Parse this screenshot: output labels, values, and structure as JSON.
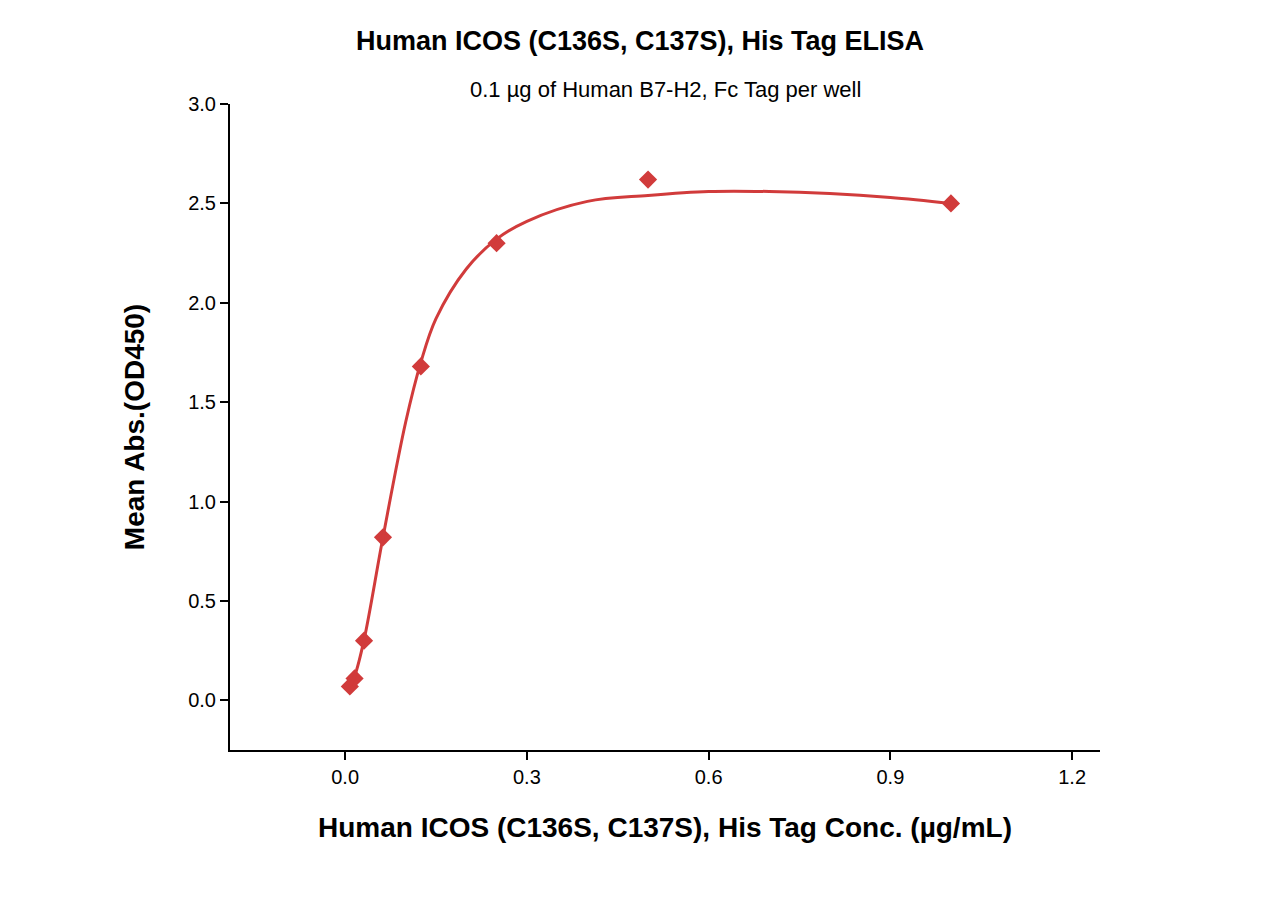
{
  "chart_data": {
    "type": "scatter",
    "title": "Human ICOS (C136S, C137S), His Tag ELISA",
    "subtitle": "0.1 µg of Human B7-H2, Fc Tag per well",
    "x_label": "Human ICOS (C136S, C137S), His Tag Conc. (µg/mL)",
    "y_label": "Mean Abs.(OD450)",
    "series": [
      {
        "type": "scatter",
        "marker": "diamond",
        "color": "#d13b3b",
        "x": [
          0.0078,
          0.0156,
          0.03125,
          0.0625,
          0.125,
          0.25,
          0.5,
          1.0
        ],
        "values": [
          0.07,
          0.11,
          0.3,
          0.82,
          1.68,
          2.3,
          2.62,
          2.5
        ]
      },
      {
        "type": "line",
        "line_style": "solid",
        "color": "#d13b3b",
        "x": [
          0.0078,
          0.0156,
          0.031,
          0.0625,
          0.1,
          0.125,
          0.15,
          0.2,
          0.25,
          0.3,
          0.4,
          0.5,
          0.6,
          0.7,
          0.8,
          0.9,
          1.0
        ],
        "values": [
          0.07,
          0.12,
          0.3,
          0.82,
          1.4,
          1.7,
          1.92,
          2.17,
          2.32,
          2.41,
          2.51,
          2.54,
          2.56,
          2.56,
          2.55,
          2.53,
          2.5
        ]
      }
    ],
    "xlim": [
      -0.19,
      1.246
    ],
    "xticks": [
      {
        "value": 0,
        "label": "0.0"
      },
      0.3,
      0.6,
      0.9,
      1.2
    ],
    "ylim": [
      -0.25,
      3.0
    ],
    "yticks": [
      {
        "value": 0,
        "label": "0.0"
      },
      0.5,
      {
        "value": 1,
        "label": "1.0"
      },
      1.5,
      {
        "value": 2,
        "label": "2.0"
      },
      2.5,
      {
        "value": 3,
        "label": "3.0"
      }
    ],
    "grid": false
  }
}
